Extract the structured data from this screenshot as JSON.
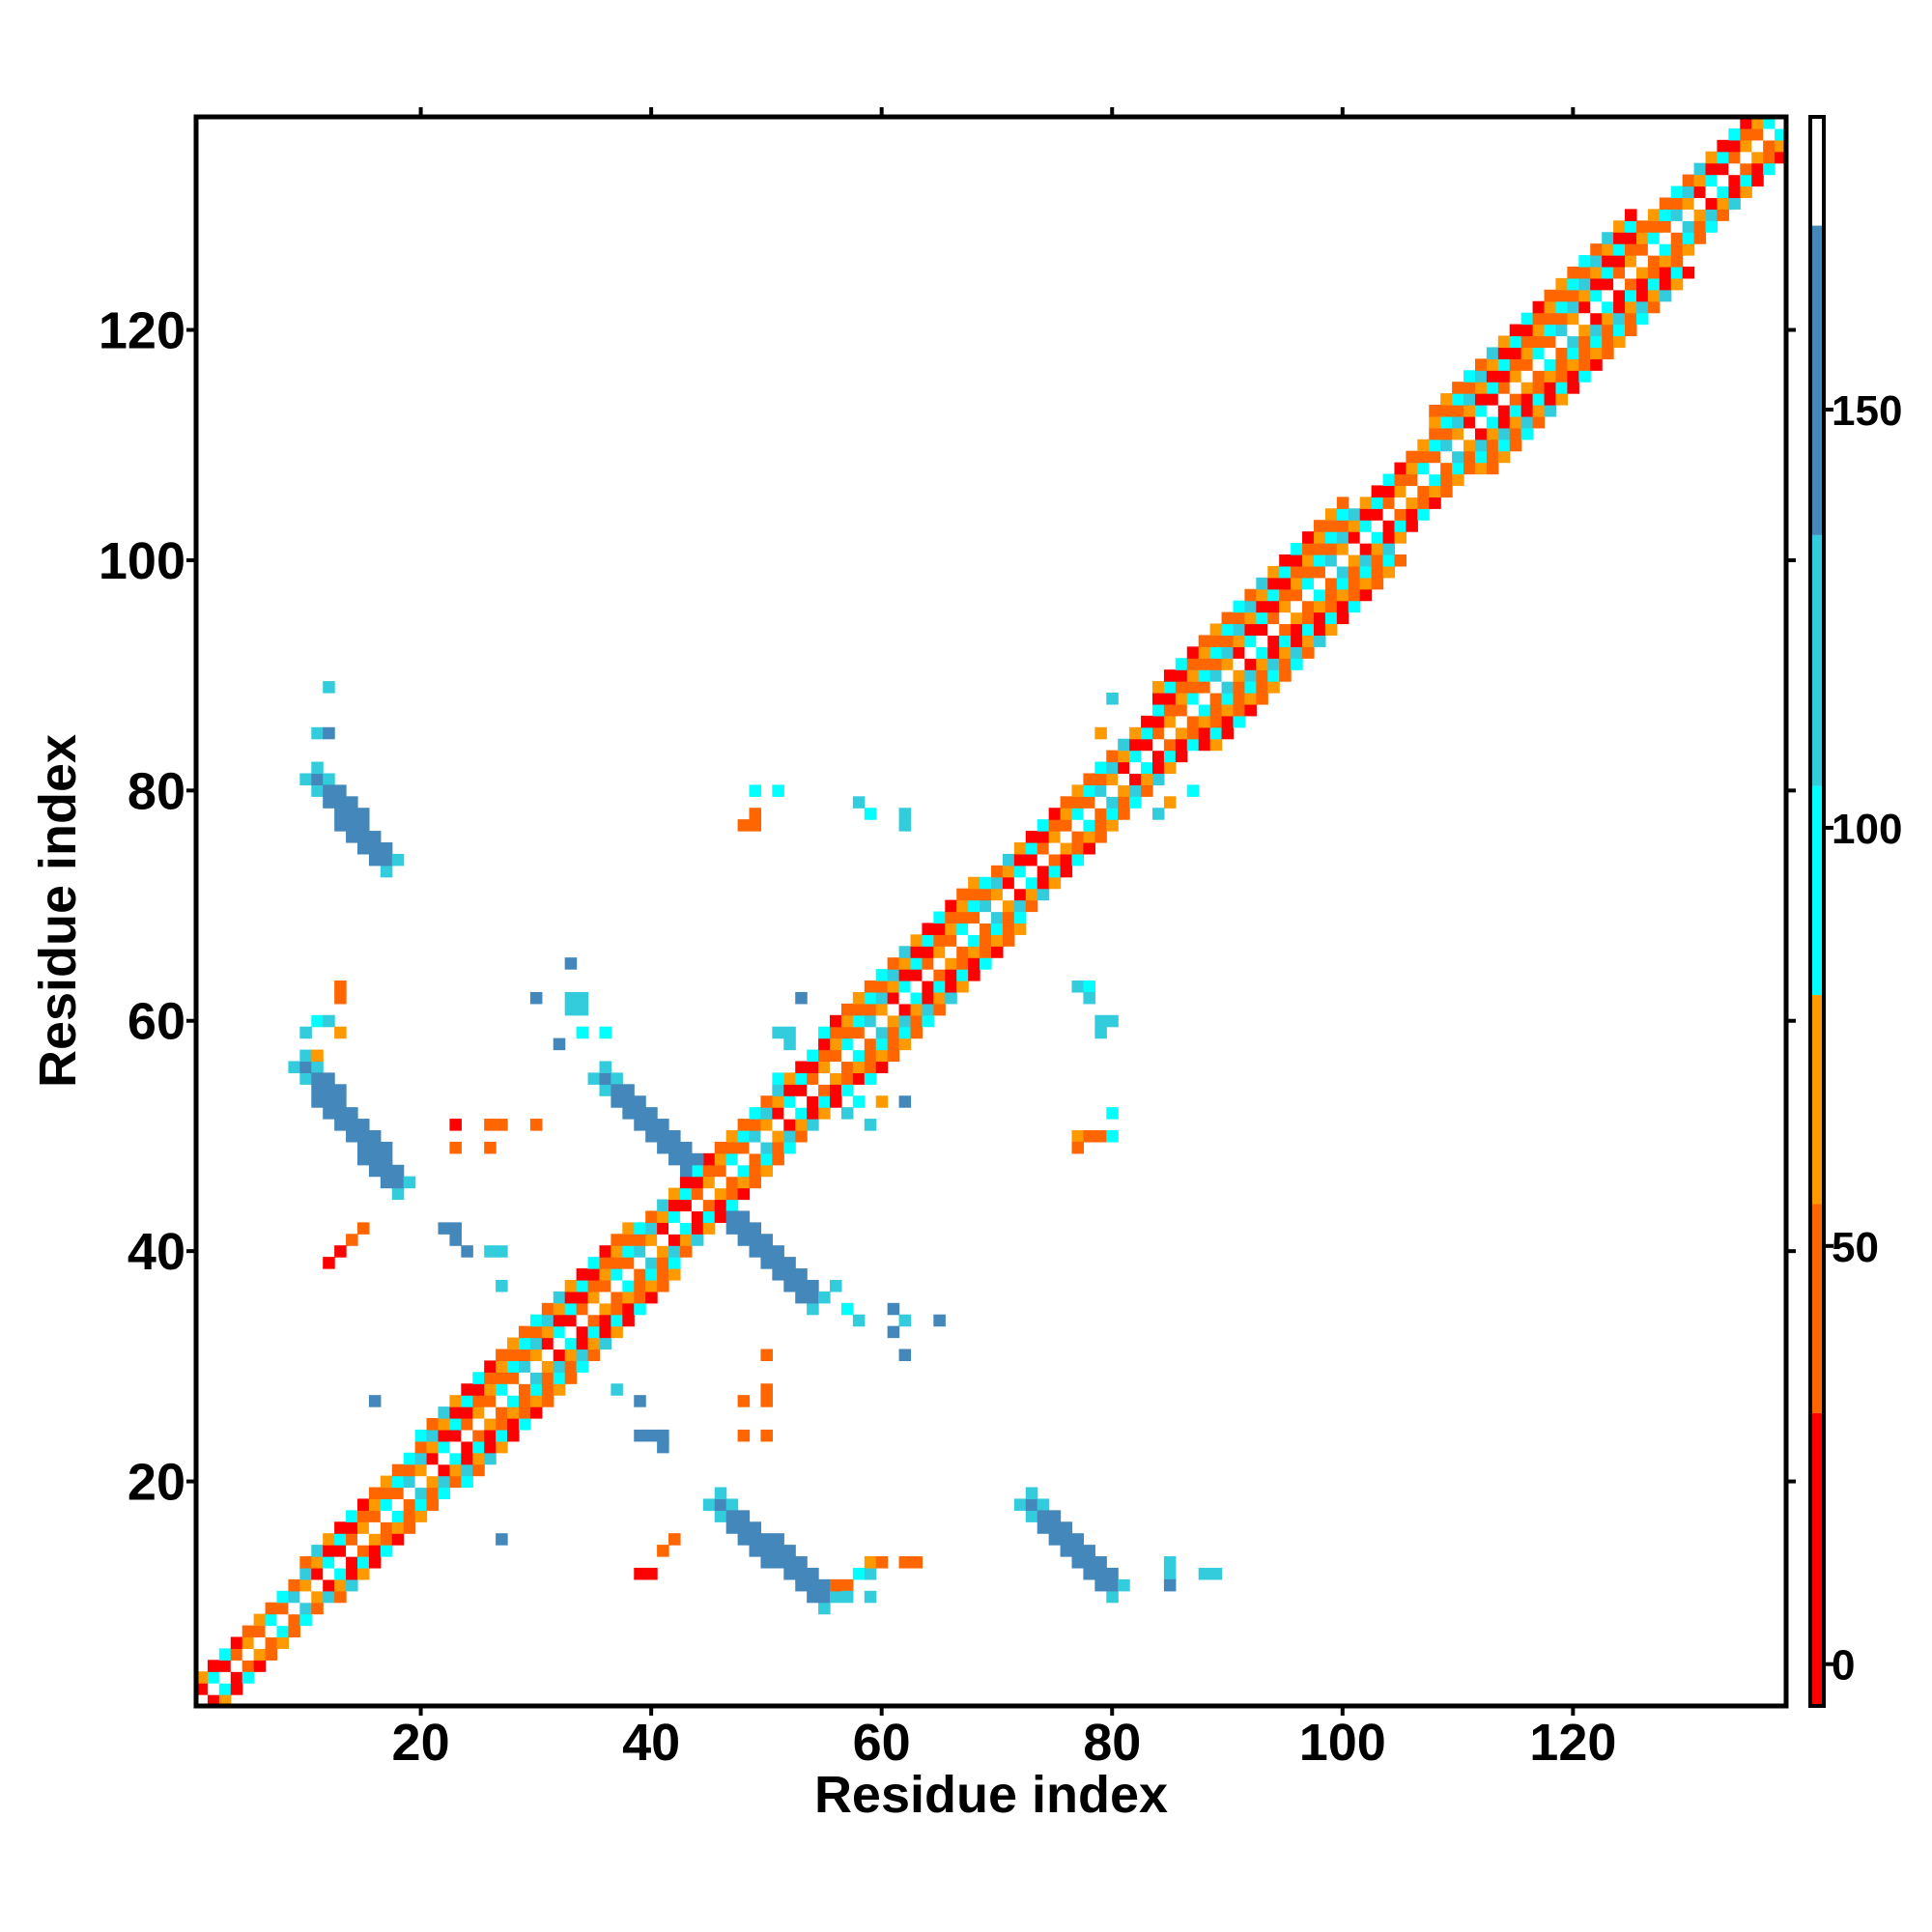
{
  "chart_data": {
    "type": "heatmap",
    "title": "",
    "xlabel": "Residue index",
    "ylabel": "Residue index",
    "xlim": [
      1,
      138
    ],
    "ylim": [
      1,
      138
    ],
    "x_ticks": [
      20,
      40,
      60,
      80,
      100,
      120
    ],
    "y_ticks": [
      20,
      40,
      60,
      80,
      100,
      120
    ],
    "grid": false,
    "colorbar": {
      "position": "right",
      "range": [
        -5,
        185
      ],
      "ticks": [
        0,
        50,
        100,
        150
      ],
      "bands": [
        {
          "from": -5,
          "to": 30,
          "color": "#ff0000"
        },
        {
          "from": 30,
          "to": 55,
          "color": "#ff6600"
        },
        {
          "from": 55,
          "to": 80,
          "color": "#ff9900"
        },
        {
          "from": 80,
          "to": 105,
          "color": "#00ffff"
        },
        {
          "from": 105,
          "to": 135,
          "color": "#33ccdd"
        },
        {
          "from": 135,
          "to": 172,
          "color": "#4488bb"
        },
        {
          "from": 172,
          "to": 185,
          "color": "#ffffff"
        }
      ]
    },
    "diagonal_band": {
      "segments": [
        {
          "from": 1,
          "to": 10,
          "halfwidth": 2
        },
        {
          "from": 10,
          "to": 20,
          "halfwidth": 3
        },
        {
          "from": 20,
          "to": 38,
          "halfwidth": 4
        },
        {
          "from": 38,
          "to": 55,
          "halfwidth": 3
        },
        {
          "from": 55,
          "to": 68,
          "halfwidth": 4
        },
        {
          "from": 68,
          "to": 84,
          "halfwidth": 3
        },
        {
          "from": 84,
          "to": 100,
          "halfwidth": 5
        },
        {
          "from": 100,
          "to": 108,
          "halfwidth": 3
        },
        {
          "from": 108,
          "to": 125,
          "halfwidth": 5
        },
        {
          "from": 125,
          "to": 138,
          "halfwidth": 3
        }
      ],
      "angle_values": [
        3,
        40,
        60,
        90,
        120,
        50,
        20,
        70,
        100,
        45
      ]
    },
    "contact_strips": [
      {
        "x": [
          11,
          17
        ],
        "y": [
          81,
          74
        ],
        "value": 140
      },
      {
        "x": [
          10,
          18
        ],
        "y": [
          56,
          46
        ],
        "value": 145
      },
      {
        "x": [
          36,
          45
        ],
        "y": [
          55,
          46
        ],
        "value": 145
      },
      {
        "x": [
          45,
          54
        ],
        "y": [
          45,
          36
        ],
        "value": 145
      },
      {
        "x": [
          46,
          55
        ],
        "y": [
          18,
          10
        ],
        "value": 145
      },
      {
        "x": [
          73,
          80
        ],
        "y": [
          18,
          11
        ],
        "value": 145
      }
    ],
    "scatter_cells": [
      {
        "x": 12,
        "y": 89,
        "value": 120
      },
      {
        "x": 11,
        "y": 85,
        "value": 120
      },
      {
        "x": 12,
        "y": 85,
        "value": 140
      },
      {
        "x": 13,
        "y": 63,
        "value": 40
      },
      {
        "x": 13,
        "y": 62,
        "value": 45
      },
      {
        "x": 11,
        "y": 60,
        "value": 95
      },
      {
        "x": 12,
        "y": 60,
        "value": 110
      },
      {
        "x": 10,
        "y": 59,
        "value": 120
      },
      {
        "x": 13,
        "y": 59,
        "value": 60
      },
      {
        "x": 10,
        "y": 57,
        "value": 40
      },
      {
        "x": 11,
        "y": 57,
        "value": 70
      },
      {
        "x": 15,
        "y": 42,
        "value": 30
      },
      {
        "x": 14,
        "y": 41,
        "value": 40
      },
      {
        "x": 13,
        "y": 40,
        "value": 20
      },
      {
        "x": 12,
        "y": 39,
        "value": 15
      },
      {
        "x": 23,
        "y": 51,
        "value": 10
      },
      {
        "x": 23,
        "y": 49,
        "value": 40
      },
      {
        "x": 26,
        "y": 51,
        "value": 45
      },
      {
        "x": 27,
        "y": 51,
        "value": 50
      },
      {
        "x": 26,
        "y": 49,
        "value": 40
      },
      {
        "x": 30,
        "y": 51,
        "value": 35
      },
      {
        "x": 22,
        "y": 42,
        "value": 150
      },
      {
        "x": 23,
        "y": 42,
        "value": 150
      },
      {
        "x": 23,
        "y": 41,
        "value": 145
      },
      {
        "x": 24,
        "y": 40,
        "value": 140
      },
      {
        "x": 26,
        "y": 40,
        "value": 120
      },
      {
        "x": 27,
        "y": 40,
        "value": 120
      },
      {
        "x": 33,
        "y": 65,
        "value": 140
      },
      {
        "x": 30,
        "y": 62,
        "value": 145
      },
      {
        "x": 33,
        "y": 62,
        "value": 120
      },
      {
        "x": 34,
        "y": 62,
        "value": 120
      },
      {
        "x": 33,
        "y": 61,
        "value": 120
      },
      {
        "x": 34,
        "y": 61,
        "value": 110
      },
      {
        "x": 34,
        "y": 59,
        "value": 100
      },
      {
        "x": 36,
        "y": 59,
        "value": 100
      },
      {
        "x": 32,
        "y": 58,
        "value": 140
      },
      {
        "x": 27,
        "y": 37,
        "value": 115
      },
      {
        "x": 16,
        "y": 27,
        "value": 145
      },
      {
        "x": 27,
        "y": 15,
        "value": 145
      },
      {
        "x": 37,
        "y": 28,
        "value": 120
      },
      {
        "x": 39,
        "y": 27,
        "value": 140
      },
      {
        "x": 39,
        "y": 24,
        "value": 145
      },
      {
        "x": 40,
        "y": 24,
        "value": 145
      },
      {
        "x": 41,
        "y": 24,
        "value": 145
      },
      {
        "x": 41,
        "y": 23,
        "value": 145
      },
      {
        "x": 48,
        "y": 27,
        "value": 35
      },
      {
        "x": 50,
        "y": 27,
        "value": 45
      },
      {
        "x": 50,
        "y": 28,
        "value": 40
      },
      {
        "x": 50,
        "y": 31,
        "value": 35
      },
      {
        "x": 48,
        "y": 24,
        "value": 30
      },
      {
        "x": 50,
        "y": 24,
        "value": 30
      },
      {
        "x": 39,
        "y": 12,
        "value": 20
      },
      {
        "x": 40,
        "y": 12,
        "value": 25
      },
      {
        "x": 41,
        "y": 14,
        "value": 30
      },
      {
        "x": 42,
        "y": 15,
        "value": 35
      },
      {
        "x": 49,
        "y": 80,
        "value": 100
      },
      {
        "x": 51,
        "y": 80,
        "value": 95
      },
      {
        "x": 49,
        "y": 78,
        "value": 45
      },
      {
        "x": 48,
        "y": 77,
        "value": 40
      },
      {
        "x": 49,
        "y": 77,
        "value": 50
      },
      {
        "x": 58,
        "y": 79,
        "value": 120
      },
      {
        "x": 59,
        "y": 78,
        "value": 100
      },
      {
        "x": 62,
        "y": 78,
        "value": 115
      },
      {
        "x": 62,
        "y": 77,
        "value": 120
      },
      {
        "x": 53,
        "y": 62,
        "value": 145
      },
      {
        "x": 51,
        "y": 59,
        "value": 120
      },
      {
        "x": 52,
        "y": 59,
        "value": 115
      },
      {
        "x": 52,
        "y": 58,
        "value": 130
      },
      {
        "x": 51,
        "y": 55,
        "value": 100
      },
      {
        "x": 52,
        "y": 55,
        "value": 95
      },
      {
        "x": 56,
        "y": 54,
        "value": 110
      },
      {
        "x": 58,
        "y": 53,
        "value": 100
      },
      {
        "x": 60,
        "y": 53,
        "value": 70
      },
      {
        "x": 62,
        "y": 53,
        "value": 145
      },
      {
        "x": 57,
        "y": 52,
        "value": 120
      },
      {
        "x": 59,
        "y": 51,
        "value": 130
      },
      {
        "x": 54,
        "y": 35,
        "value": 70
      },
      {
        "x": 56,
        "y": 37,
        "value": 115
      },
      {
        "x": 57,
        "y": 35,
        "value": 100
      },
      {
        "x": 58,
        "y": 34,
        "value": 120
      },
      {
        "x": 61,
        "y": 35,
        "value": 135
      },
      {
        "x": 62,
        "y": 34,
        "value": 125
      },
      {
        "x": 61,
        "y": 33,
        "value": 140
      },
      {
        "x": 65,
        "y": 34,
        "value": 145
      },
      {
        "x": 62,
        "y": 31,
        "value": 145
      },
      {
        "x": 54,
        "y": 11,
        "value": 60
      },
      {
        "x": 56,
        "y": 11,
        "value": 45
      },
      {
        "x": 57,
        "y": 11,
        "value": 35
      },
      {
        "x": 58,
        "y": 12,
        "value": 100
      },
      {
        "x": 59,
        "y": 12,
        "value": 110
      },
      {
        "x": 59,
        "y": 13,
        "value": 60
      },
      {
        "x": 60,
        "y": 13,
        "value": 45
      },
      {
        "x": 62,
        "y": 13,
        "value": 40
      },
      {
        "x": 63,
        "y": 13,
        "value": 40
      },
      {
        "x": 57,
        "y": 10,
        "value": 110
      },
      {
        "x": 59,
        "y": 10,
        "value": 120
      },
      {
        "x": 77,
        "y": 63,
        "value": 120
      },
      {
        "x": 78,
        "y": 63,
        "value": 100
      },
      {
        "x": 78,
        "y": 62,
        "value": 110
      },
      {
        "x": 79,
        "y": 60,
        "value": 115
      },
      {
        "x": 80,
        "y": 60,
        "value": 120
      },
      {
        "x": 79,
        "y": 59,
        "value": 125
      },
      {
        "x": 80,
        "y": 52,
        "value": 100
      },
      {
        "x": 77,
        "y": 50,
        "value": 60
      },
      {
        "x": 78,
        "y": 50,
        "value": 50
      },
      {
        "x": 79,
        "y": 50,
        "value": 45
      },
      {
        "x": 80,
        "y": 50,
        "value": 100
      },
      {
        "x": 77,
        "y": 49,
        "value": 40
      },
      {
        "x": 80,
        "y": 88,
        "value": 115
      },
      {
        "x": 79,
        "y": 85,
        "value": 60
      },
      {
        "x": 84,
        "y": 78,
        "value": 120
      },
      {
        "x": 85,
        "y": 79,
        "value": 60
      },
      {
        "x": 87,
        "y": 80,
        "value": 100
      },
      {
        "x": 85,
        "y": 13,
        "value": 130
      },
      {
        "x": 85,
        "y": 12,
        "value": 130
      },
      {
        "x": 85,
        "y": 11,
        "value": 140
      },
      {
        "x": 88,
        "y": 12,
        "value": 125
      },
      {
        "x": 89,
        "y": 12,
        "value": 130
      }
    ]
  }
}
